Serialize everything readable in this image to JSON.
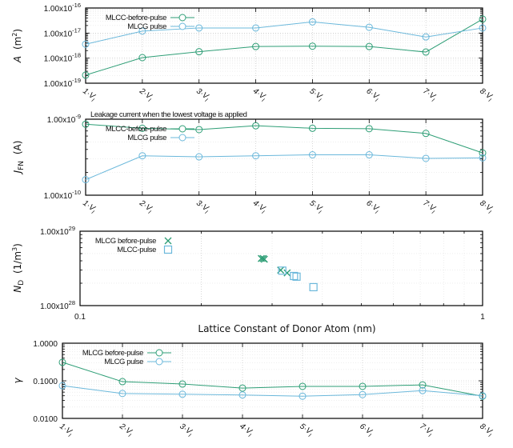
{
  "colors": {
    "green": "#2e9e76",
    "blue": "#6bb8db"
  },
  "chart_data": [
    {
      "type": "line",
      "ylabel_main": "A",
      "ylabel_unit": "(m",
      "ylabel_sup": "2",
      "ylabel_close": ")",
      "yscale": "log",
      "ylim": [
        1e-19,
        1e-16
      ],
      "yticks": [
        {
          "value": 1e-19,
          "base": "1.00x10",
          "exp": "-19"
        },
        {
          "value": 1e-18,
          "base": "1.00x10",
          "exp": "-18"
        },
        {
          "value": 1e-17,
          "base": "1.00x10",
          "exp": "-17"
        },
        {
          "value": 1e-16,
          "base": "1.00x10",
          "exp": "-16"
        }
      ],
      "categories": [
        {
          "n": "1·",
          "v": "V",
          "sub": "I"
        },
        {
          "n": "2·",
          "v": "V",
          "sub": "I"
        },
        {
          "n": "3·",
          "v": "V",
          "sub": "I"
        },
        {
          "n": "4·",
          "v": "V",
          "sub": "I"
        },
        {
          "n": "5·",
          "v": "V",
          "sub": "I"
        },
        {
          "n": "6·",
          "v": "V",
          "sub": "I"
        },
        {
          "n": "7·",
          "v": "V",
          "sub": "I"
        },
        {
          "n": "8·",
          "v": "V",
          "sub": "I"
        }
      ],
      "annotation": "",
      "series": [
        {
          "name": "MLCC-before-pulse",
          "color": "green",
          "values": [
            2.1e-19,
            1.05e-18,
            1.8e-18,
            2.9e-18,
            3e-18,
            2.9e-18,
            1.75e-18,
            3.6e-17
          ]
        },
        {
          "name": "MLCG pulse",
          "color": "blue",
          "values": [
            3.6e-18,
            1.2e-17,
            1.6e-17,
            1.6e-17,
            2.8e-17,
            1.7e-17,
            7e-18,
            1.6e-17
          ]
        }
      ],
      "legend": "top-left"
    },
    {
      "type": "line",
      "ylabel_main": "J",
      "ylabel_sub": "FN",
      "ylabel_unit": "(A)",
      "yscale": "log",
      "ylim": [
        1e-10,
        1e-09
      ],
      "yticks": [
        {
          "value": 1e-10,
          "base": "1.00x10",
          "exp": "-10"
        },
        {
          "value": 1e-09,
          "base": "1.00x10",
          "exp": "-9"
        }
      ],
      "categories": [
        {
          "n": "1·",
          "v": "V",
          "sub": "I"
        },
        {
          "n": "2·",
          "v": "V",
          "sub": "I"
        },
        {
          "n": "3·",
          "v": "V",
          "sub": "I"
        },
        {
          "n": "4·",
          "v": "V",
          "sub": "I"
        },
        {
          "n": "5·",
          "v": "V",
          "sub": "I"
        },
        {
          "n": "6·",
          "v": "V",
          "sub": "I"
        },
        {
          "n": "7·",
          "v": "V",
          "sub": "I"
        },
        {
          "n": "8·",
          "v": "V",
          "sub": "I"
        }
      ],
      "annotation": "Leakage current when the lowest voltage is applied",
      "series": [
        {
          "name": "MLCC-before-pulse",
          "color": "green",
          "values": [
            8.6e-10,
            7.6e-10,
            7.3e-10,
            8.2e-10,
            7.6e-10,
            7.5e-10,
            6.5e-10,
            3.6e-10
          ]
        },
        {
          "name": "MLCG pulse",
          "color": "blue",
          "values": [
            1.6e-10,
            3.3e-10,
            3.2e-10,
            3.3e-10,
            3.4e-10,
            3.4e-10,
            3.05e-10,
            3.1e-10
          ]
        }
      ],
      "legend": "top-left"
    },
    {
      "type": "scatter",
      "ylabel_main": "N",
      "ylabel_sub": "D",
      "ylabel_unit": "(1/m",
      "ylabel_sup": "3",
      "ylabel_close": ")",
      "xlabel": "Lattice Constant of Donor Atom  (nm)",
      "xscale": "log",
      "yscale": "log",
      "xlim": [
        0.1,
        1
      ],
      "ylim": [
        1e+28,
        1e+29
      ],
      "xticks": [
        {
          "value": 0.1,
          "label": "0.1"
        },
        {
          "value": 1,
          "label": "1"
        }
      ],
      "yticks": [
        {
          "value": 1e+28,
          "base": "1.00x10",
          "exp": "28"
        },
        {
          "value": 1e+29,
          "base": "1.00x10",
          "exp": "29"
        }
      ],
      "series": [
        {
          "name": "MLCG before-pulse",
          "color": "green",
          "marker": "x",
          "points": [
            [
              0.282,
              4.3e+28
            ],
            [
              0.285,
              4.3e+28
            ],
            [
              0.287,
              4.2e+28
            ],
            [
              0.315,
              3e+28
            ],
            [
              0.327,
              2.75e+28
            ]
          ]
        },
        {
          "name": "MLCC-pulse",
          "color": "blue",
          "marker": "square",
          "points": [
            [
              0.318,
              2.95e+28
            ],
            [
              0.34,
              2.5e+28
            ],
            [
              0.345,
              2.45e+28
            ],
            [
              0.38,
              1.77e+28
            ]
          ]
        }
      ],
      "legend": "top-left"
    },
    {
      "type": "line",
      "ylabel_main": "γ",
      "yscale": "log",
      "ylim": [
        0.01,
        1
      ],
      "yticks": [
        {
          "value": 0.01,
          "label": "0.0100"
        },
        {
          "value": 0.1,
          "label": "0.1000"
        },
        {
          "value": 1,
          "label": "1.0000"
        }
      ],
      "categories": [
        {
          "n": "1·",
          "v": "V",
          "sub": "I"
        },
        {
          "n": "2·",
          "v": "V",
          "sub": "I"
        },
        {
          "n": "3·",
          "v": "V",
          "sub": "I"
        },
        {
          "n": "4·",
          "v": "V",
          "sub": "I"
        },
        {
          "n": "5·",
          "v": "V",
          "sub": "I"
        },
        {
          "n": "6·",
          "v": "V",
          "sub": "I"
        },
        {
          "n": "7·",
          "v": "V",
          "sub": "I"
        },
        {
          "n": "8·",
          "v": "V",
          "sub": "I"
        }
      ],
      "series": [
        {
          "name": "MLCG before-pulse",
          "color": "green",
          "values": [
            0.31,
            0.095,
            0.082,
            0.064,
            0.071,
            0.071,
            0.078,
            0.039
          ]
        },
        {
          "name": "MLCG pulse",
          "color": "blue",
          "values": [
            0.074,
            0.046,
            0.044,
            0.042,
            0.039,
            0.043,
            0.055,
            0.04
          ]
        }
      ],
      "legend": "top-left"
    }
  ]
}
